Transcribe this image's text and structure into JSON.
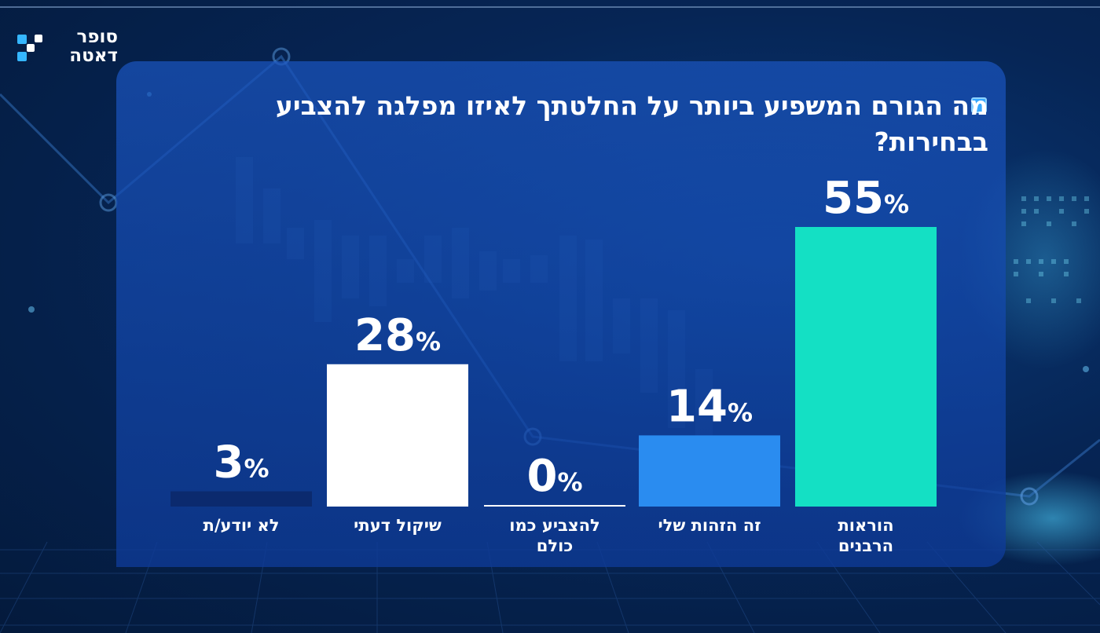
{
  "brand": {
    "line1": "סופר",
    "line2": "דאטה"
  },
  "icons": {
    "logo": "data-logo-icon",
    "title_bullet": "square-bullet-icon"
  },
  "colors": {
    "accent_teal": "#14e0c4",
    "bar_blue": "#2a8cf0",
    "bar_white": "#ffffff",
    "bar_navy": "#0b2a6e",
    "text": "#ffffff"
  },
  "chart_data": {
    "type": "bar",
    "title": "מה הגורם המשפיע ביותר על החלטתך לאיזו מפלגה להצביע בבחירות?",
    "categories": [
      "הוראות הרבנים",
      "זה הזהות שלי",
      "להצביע כמו כולם",
      "שיקול דעתי",
      "לא יודע/ת"
    ],
    "values": [
      55,
      14,
      0,
      28,
      3
    ],
    "value_labels": [
      "55%",
      "14%",
      "0%",
      "28%",
      "3%"
    ],
    "bar_colors": [
      "#14e0c4",
      "#2a8cf0",
      "#ffffff",
      "#ffffff",
      "#0b2a6e"
    ],
    "unit": "%",
    "ylim": [
      0,
      55
    ],
    "grid": false,
    "legend": "none",
    "direction": "rtl"
  }
}
